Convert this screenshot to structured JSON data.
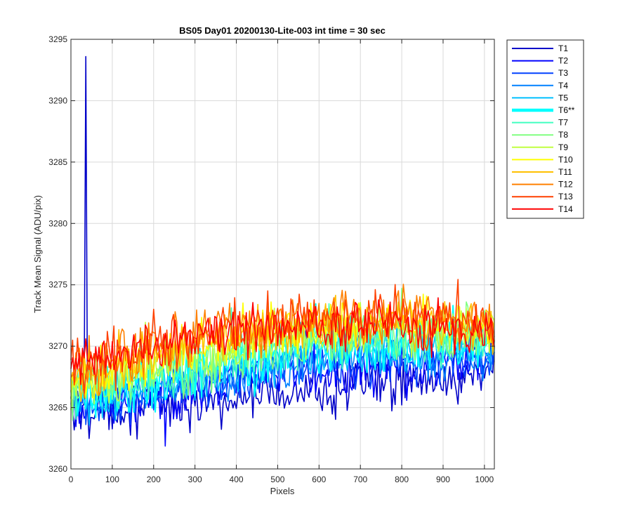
{
  "chart_data": {
    "type": "line",
    "title": "BS05 Day01 20200130-Lite-003 int time = 30 sec",
    "xlabel": "Pixels",
    "ylabel": "Track Mean Signal (ADU/pix)",
    "xlim": [
      0,
      1024
    ],
    "ylim": [
      3260,
      3295
    ],
    "xticks": [
      0,
      100,
      200,
      300,
      400,
      500,
      600,
      700,
      800,
      900,
      1000
    ],
    "yticks": [
      3260,
      3265,
      3270,
      3275,
      3280,
      3285,
      3290,
      3295
    ],
    "grid": true,
    "legend_position": "outside-right",
    "x_step": 4,
    "spikes": [
      {
        "series": "T1",
        "x": 36,
        "y": 3293.6
      }
    ],
    "series": [
      {
        "name": "T1",
        "color": "#0000C8",
        "emphasized": false,
        "noise": 1.0,
        "values": [
          3264.6,
          3264.9,
          3265.1,
          3265.3,
          3265.6,
          3266.1,
          3266.6,
          3266.9,
          3267.1,
          3267.3,
          3267.5
        ]
      },
      {
        "name": "T2",
        "color": "#0000FF",
        "emphasized": false,
        "noise": 1.0,
        "values": [
          3264.7,
          3265.3,
          3265.8,
          3266.5,
          3267.2,
          3267.6,
          3268.0,
          3268.2,
          3268.4,
          3268.5,
          3268.6
        ]
      },
      {
        "name": "T3",
        "color": "#0040FF",
        "emphasized": false,
        "noise": 0.95,
        "values": [
          3265.0,
          3265.6,
          3266.2,
          3266.8,
          3267.5,
          3268.0,
          3268.4,
          3268.6,
          3268.8,
          3268.9,
          3268.9
        ]
      },
      {
        "name": "T4",
        "color": "#0080FF",
        "emphasized": false,
        "noise": 0.95,
        "values": [
          3265.2,
          3265.9,
          3266.5,
          3267.2,
          3267.9,
          3268.4,
          3268.8,
          3269.1,
          3269.2,
          3269.3,
          3269.3
        ]
      },
      {
        "name": "T5",
        "color": "#00C0FF",
        "emphasized": false,
        "noise": 0.95,
        "values": [
          3265.5,
          3266.2,
          3266.9,
          3267.6,
          3268.4,
          3268.9,
          3269.4,
          3269.7,
          3269.8,
          3269.9,
          3269.9
        ]
      },
      {
        "name": "T6**",
        "color": "#00FFFF",
        "emphasized": true,
        "noise": 1.1,
        "values": [
          3265.8,
          3266.5,
          3267.2,
          3268.0,
          3268.8,
          3269.4,
          3269.9,
          3270.2,
          3270.3,
          3270.4,
          3270.3
        ]
      },
      {
        "name": "T7",
        "color": "#40FFC0",
        "emphasized": false,
        "noise": 1.0,
        "values": [
          3266.0,
          3266.8,
          3267.5,
          3268.3,
          3269.1,
          3269.7,
          3270.2,
          3270.5,
          3270.6,
          3270.7,
          3270.6
        ]
      },
      {
        "name": "T8",
        "color": "#80FF80",
        "emphasized": false,
        "noise": 1.0,
        "values": [
          3266.3,
          3267.1,
          3267.9,
          3268.7,
          3269.5,
          3270.1,
          3270.6,
          3270.9,
          3271.0,
          3271.0,
          3270.9
        ]
      },
      {
        "name": "T9",
        "color": "#C0FF40",
        "emphasized": false,
        "noise": 1.0,
        "values": [
          3266.6,
          3267.5,
          3268.3,
          3269.2,
          3270.0,
          3270.6,
          3271.1,
          3271.4,
          3271.5,
          3271.5,
          3271.3
        ]
      },
      {
        "name": "T10",
        "color": "#FFFF00",
        "emphasized": false,
        "noise": 1.05,
        "values": [
          3267.0,
          3268.0,
          3268.9,
          3269.8,
          3270.6,
          3271.2,
          3271.6,
          3271.9,
          3272.0,
          3271.9,
          3271.6
        ]
      },
      {
        "name": "T11",
        "color": "#FFC000",
        "emphasized": false,
        "noise": 1.05,
        "values": [
          3267.4,
          3268.4,
          3269.3,
          3270.2,
          3271.0,
          3271.6,
          3272.0,
          3272.2,
          3272.3,
          3272.2,
          3271.8
        ]
      },
      {
        "name": "T12",
        "color": "#FF8000",
        "emphasized": false,
        "noise": 1.1,
        "values": [
          3268.0,
          3269.0,
          3269.9,
          3270.8,
          3271.5,
          3272.0,
          3272.3,
          3272.5,
          3272.5,
          3272.3,
          3271.9
        ]
      },
      {
        "name": "T13",
        "color": "#FF4000",
        "emphasized": false,
        "noise": 1.05,
        "values": [
          3268.2,
          3269.2,
          3270.1,
          3270.9,
          3271.5,
          3271.9,
          3272.1,
          3272.2,
          3272.2,
          3272.0,
          3271.6
        ]
      },
      {
        "name": "T14",
        "color": "#FF0000",
        "emphasized": false,
        "noise": 0.95,
        "values": [
          3268.4,
          3269.3,
          3270.1,
          3270.8,
          3271.3,
          3271.6,
          3271.8,
          3271.9,
          3271.8,
          3271.6,
          3271.2
        ]
      }
    ]
  }
}
